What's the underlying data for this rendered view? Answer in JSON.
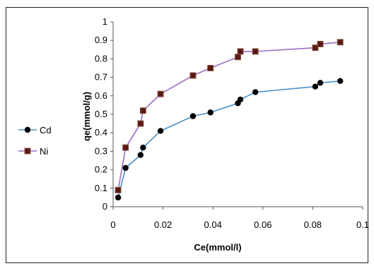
{
  "chart_data": {
    "type": "line",
    "xlabel": "Ce(mmol/l)",
    "ylabel": "qe(mmol/g)",
    "xlim": [
      0,
      0.1
    ],
    "ylim": [
      0,
      1
    ],
    "x_ticks": [
      "0",
      "0.02",
      "0.04",
      "0.06",
      "0.08",
      "0.1"
    ],
    "y_ticks": [
      "0",
      "0.1",
      "0.2",
      "0.3",
      "0.4",
      "0.5",
      "0.6",
      "0.7",
      "0.8",
      "0.9",
      "1"
    ],
    "legend_position": "left",
    "grid": false,
    "series": [
      {
        "name": "Cd",
        "color": "#4A90C9",
        "marker": "circle",
        "x": [
          0.002,
          0.005,
          0.011,
          0.012,
          0.019,
          0.032,
          0.039,
          0.05,
          0.051,
          0.057,
          0.081,
          0.083,
          0.091
        ],
        "y": [
          0.05,
          0.21,
          0.28,
          0.32,
          0.41,
          0.49,
          0.51,
          0.56,
          0.58,
          0.62,
          0.65,
          0.67,
          0.68
        ]
      },
      {
        "name": "Ni",
        "color": "#9B6FC4",
        "marker": "square",
        "x": [
          0.002,
          0.005,
          0.011,
          0.012,
          0.019,
          0.032,
          0.039,
          0.05,
          0.051,
          0.057,
          0.081,
          0.083,
          0.091
        ],
        "y": [
          0.09,
          0.32,
          0.45,
          0.52,
          0.61,
          0.71,
          0.75,
          0.81,
          0.84,
          0.84,
          0.86,
          0.88,
          0.89
        ]
      }
    ]
  }
}
